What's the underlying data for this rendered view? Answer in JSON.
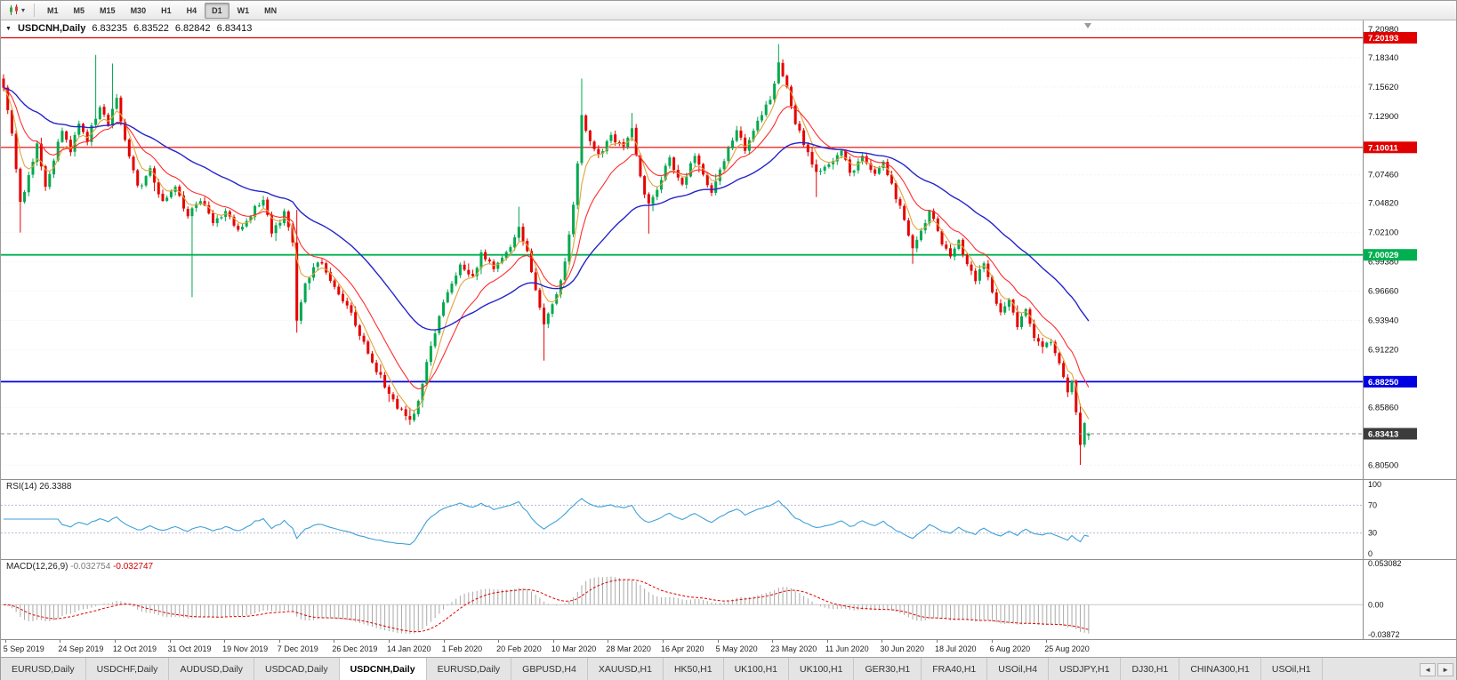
{
  "toolbar": {
    "timeframes": [
      "M1",
      "M5",
      "M15",
      "M30",
      "H1",
      "H4",
      "D1",
      "W1",
      "MN"
    ],
    "active_timeframe": "D1"
  },
  "chart": {
    "title": "USDCNH,Daily",
    "ohlc": {
      "open": "6.83235",
      "high": "6.83522",
      "low": "6.82842",
      "close": "6.83413"
    }
  },
  "rsi": {
    "label": "RSI(14)",
    "value": "26.3388",
    "axis_labels": [
      "100",
      "70",
      "30",
      "0"
    ],
    "upper_level": 70,
    "lower_level": 30
  },
  "macd": {
    "label": "MACD(12,26,9)",
    "value_main": "-0.032754",
    "value_signal": "-0.032747",
    "axis_top": "0.053082",
    "axis_zero": "0.00",
    "axis_bottom": "-0.03872",
    "y_max": 0.053082,
    "y_min": -0.03872
  },
  "tabs": {
    "items": [
      "EURUSD,Daily",
      "USDCHF,Daily",
      "AUDUSD,Daily",
      "USDCAD,Daily",
      "USDCNH,Daily",
      "EURUSD,Daily",
      "GBPUSD,H4",
      "XAUUSD,H1",
      "HK50,H1",
      "UK100,H1",
      "UK100,H1",
      "GER30,H1",
      "FRA40,H1",
      "USOil,H4",
      "USDJPY,H1",
      "DJ30,H1",
      "CHINA300,H1",
      "USOil,H1"
    ],
    "active_index": 4,
    "scroll_left": "◄",
    "scroll_right": "►"
  },
  "chart_data": {
    "type": "candlestick",
    "symbol": "USDCNH",
    "timeframe": "Daily",
    "num_candles": 260,
    "last_candle": {
      "open": 6.83235,
      "high": 6.83522,
      "low": 6.82842,
      "close": 6.83413
    },
    "y_axis_labels": [
      "7.20980",
      "7.18340",
      "7.15620",
      "7.12900",
      "7.10180",
      "7.07460",
      "7.04820",
      "7.02100",
      "6.99380",
      "6.96660",
      "6.93940",
      "6.91220",
      "6.88500",
      "6.85860",
      "6.83140",
      "6.80500"
    ],
    "y_max": 7.218,
    "y_min": 6.792,
    "x_labels": [
      "5 Sep 2019",
      "24 Sep 2019",
      "12 Oct 2019",
      "31 Oct 2019",
      "19 Nov 2019",
      "7 Dec 2019",
      "26 Dec 2019",
      "14 Jan 2020",
      "1 Feb 2020",
      "20 Feb 2020",
      "10 Mar 2020",
      "28 Mar 2020",
      "16 Apr 2020",
      "5 May 2020",
      "23 May 2020",
      "11 Jun 2020",
      "30 Jun 2020",
      "18 Jul 2020",
      "6 Aug 2020",
      "25 Aug 2020"
    ],
    "horizontal_levels": [
      {
        "price": 7.20193,
        "label": "7.20193",
        "color": "#e00000",
        "width": 1.2
      },
      {
        "price": 7.10011,
        "label": "7.10011",
        "color": "#e00000",
        "width": 1.2
      },
      {
        "price": 7.00029,
        "label": "7.00029",
        "color": "#00b050",
        "width": 1.8
      },
      {
        "price": 6.8825,
        "label": "6.88250",
        "color": "#0000e0",
        "width": 1.8
      }
    ],
    "current_price": {
      "value": 6.83413,
      "label": "6.83413",
      "box_color": "#3c3c3c"
    },
    "colors": {
      "bull": "#00a94f",
      "bear": "#e60000",
      "ma_fast": "#e2a33c",
      "ma_mid": "#ff2d2d",
      "ma_slow": "#2424cc",
      "rsi_line": "#3fa0d8",
      "rsi_level": "#b9b9d6",
      "macd_hist": "#a9a9a9",
      "macd_signal": "#e00000"
    },
    "moving_averages": [
      {
        "period": 5,
        "color_key": "ma_fast"
      },
      {
        "period": 13,
        "color_key": "ma_mid"
      },
      {
        "period": 40,
        "color_key": "ma_slow"
      }
    ],
    "price_path": [
      [
        0,
        7.158
      ],
      [
        2,
        7.115
      ],
      [
        4,
        7.048
      ],
      [
        6,
        7.075
      ],
      [
        8,
        7.102
      ],
      [
        10,
        7.063
      ],
      [
        12,
        7.088
      ],
      [
        14,
        7.118
      ],
      [
        16,
        7.098
      ],
      [
        18,
        7.124
      ],
      [
        20,
        7.108
      ],
      [
        23,
        7.138
      ],
      [
        25,
        7.122
      ],
      [
        27,
        7.148
      ],
      [
        29,
        7.105
      ],
      [
        32,
        7.062
      ],
      [
        35,
        7.078
      ],
      [
        38,
        7.048
      ],
      [
        41,
        7.062
      ],
      [
        44,
        7.036
      ],
      [
        47,
        7.052
      ],
      [
        50,
        7.028
      ],
      [
        53,
        7.042
      ],
      [
        56,
        7.022
      ],
      [
        59,
        7.038
      ],
      [
        62,
        7.052
      ],
      [
        64,
        7.022
      ],
      [
        67,
        7.038
      ],
      [
        69,
        7.012
      ],
      [
        70,
        6.938
      ],
      [
        72,
        6.972
      ],
      [
        75,
        6.996
      ],
      [
        78,
        6.978
      ],
      [
        82,
        6.952
      ],
      [
        85,
        6.928
      ],
      [
        88,
        6.902
      ],
      [
        91,
        6.878
      ],
      [
        94,
        6.858
      ],
      [
        97,
        6.848
      ],
      [
        99,
        6.862
      ],
      [
        101,
        6.902
      ],
      [
        104,
        6.944
      ],
      [
        107,
        6.974
      ],
      [
        109,
        6.992
      ],
      [
        112,
        6.978
      ],
      [
        114,
        7.002
      ],
      [
        117,
        6.986
      ],
      [
        120,
        7.002
      ],
      [
        123,
        7.026
      ],
      [
        125,
        7.002
      ],
      [
        127,
        6.968
      ],
      [
        129,
        6.938
      ],
      [
        132,
        6.962
      ],
      [
        134,
        6.992
      ],
      [
        136,
        7.048
      ],
      [
        138,
        7.128
      ],
      [
        140,
        7.108
      ],
      [
        142,
        7.092
      ],
      [
        145,
        7.112
      ],
      [
        148,
        7.098
      ],
      [
        150,
        7.115
      ],
      [
        152,
        7.072
      ],
      [
        154,
        7.046
      ],
      [
        157,
        7.072
      ],
      [
        159,
        7.088
      ],
      [
        162,
        7.064
      ],
      [
        165,
        7.092
      ],
      [
        167,
        7.076
      ],
      [
        169,
        7.058
      ],
      [
        172,
        7.088
      ],
      [
        175,
        7.118
      ],
      [
        177,
        7.096
      ],
      [
        180,
        7.122
      ],
      [
        183,
        7.146
      ],
      [
        185,
        7.178
      ],
      [
        187,
        7.156
      ],
      [
        189,
        7.122
      ],
      [
        192,
        7.096
      ],
      [
        194,
        7.076
      ],
      [
        197,
        7.086
      ],
      [
        200,
        7.096
      ],
      [
        202,
        7.076
      ],
      [
        205,
        7.092
      ],
      [
        208,
        7.076
      ],
      [
        210,
        7.086
      ],
      [
        212,
        7.066
      ],
      [
        215,
        7.032
      ],
      [
        217,
        7.006
      ],
      [
        219,
        7.022
      ],
      [
        221,
        7.042
      ],
      [
        224,
        7.012
      ],
      [
        226,
        6.996
      ],
      [
        228,
        7.012
      ],
      [
        230,
        6.992
      ],
      [
        232,
        6.976
      ],
      [
        234,
        6.992
      ],
      [
        236,
        6.966
      ],
      [
        238,
        6.946
      ],
      [
        240,
        6.956
      ],
      [
        242,
        6.936
      ],
      [
        244,
        6.95
      ],
      [
        246,
        6.926
      ],
      [
        248,
        6.916
      ],
      [
        250,
        6.922
      ],
      [
        252,
        6.898
      ],
      [
        254,
        6.874
      ],
      [
        255,
        6.886
      ],
      [
        256,
        6.856
      ],
      [
        257,
        6.826
      ],
      [
        258,
        6.846
      ],
      [
        259,
        6.8341
      ]
    ],
    "wick_events": [
      {
        "i": 0,
        "h": 7.168
      },
      {
        "i": 4,
        "l": 7.021
      },
      {
        "i": 22,
        "h": 7.186
      },
      {
        "i": 26,
        "h": 7.178
      },
      {
        "i": 45,
        "l": 6.961
      },
      {
        "i": 70,
        "h": 7.042,
        "l": 6.928
      },
      {
        "i": 97,
        "l": 6.8425
      },
      {
        "i": 123,
        "h": 7.045
      },
      {
        "i": 129,
        "l": 6.902
      },
      {
        "i": 138,
        "h": 7.164
      },
      {
        "i": 150,
        "h": 7.132
      },
      {
        "i": 154,
        "l": 7.02
      },
      {
        "i": 185,
        "h": 7.196
      },
      {
        "i": 194,
        "l": 7.054
      },
      {
        "i": 217,
        "l": 6.992
      },
      {
        "i": 257,
        "l": 6.8052
      }
    ]
  }
}
